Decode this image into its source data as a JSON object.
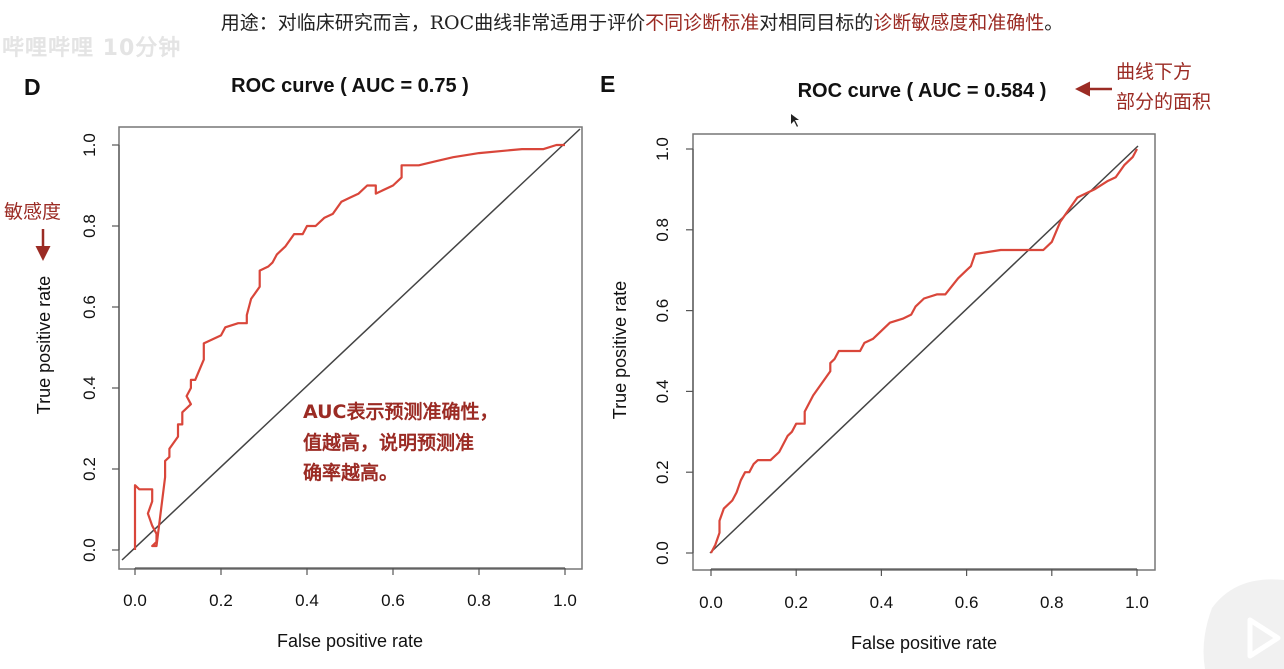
{
  "header": {
    "text_a": "用途：对临床研究而言，ROC曲线非常适用于评价",
    "text_b": "不同诊断标准",
    "text_c": "对相同目标的",
    "text_d": "诊断敏感度和准确性",
    "text_e": "。"
  },
  "watermark": "哔哩哔哩 10分钟",
  "colors": {
    "curve": "#d9463a",
    "annotation": "#9b2b24",
    "diagonal": "#444444"
  },
  "chart_data": [
    {
      "type": "line",
      "panel": "D",
      "title": "ROC curve ( AUC =  0.75 )",
      "xlabel": "False positive rate",
      "ylabel": "True positive rate",
      "xlim": [
        0,
        1
      ],
      "ylim": [
        0,
        1
      ],
      "xticks": [
        "0.0",
        "0.2",
        "0.4",
        "0.6",
        "0.8",
        "1.0"
      ],
      "yticks": [
        "0.0",
        "0.2",
        "0.4",
        "0.6",
        "0.8",
        "1.0"
      ],
      "series": [
        {
          "x": [
            0.0,
            0.0,
            0.01,
            0.04,
            0.04,
            0.03,
            0.04,
            0.05,
            0.05,
            0.04,
            0.05,
            0.07,
            0.07,
            0.07,
            0.08,
            0.08,
            0.1,
            0.1,
            0.11,
            0.11,
            0.13,
            0.12,
            0.13,
            0.13,
            0.14,
            0.16,
            0.16,
            0.18,
            0.2,
            0.21,
            0.24,
            0.26,
            0.26,
            0.27,
            0.29,
            0.29,
            0.31,
            0.32,
            0.33,
            0.35,
            0.37,
            0.39,
            0.4,
            0.42,
            0.44,
            0.46,
            0.48,
            0.5,
            0.52,
            0.54,
            0.56,
            0.56,
            0.6,
            0.62,
            0.62,
            0.66,
            0.7,
            0.74,
            0.8,
            0.9,
            0.95,
            0.98,
            0.99,
            1.0
          ],
          "y": [
            0.0,
            0.16,
            0.15,
            0.15,
            0.12,
            0.09,
            0.06,
            0.04,
            0.02,
            0.01,
            0.01,
            0.18,
            0.19,
            0.22,
            0.23,
            0.25,
            0.28,
            0.31,
            0.31,
            0.34,
            0.36,
            0.38,
            0.4,
            0.42,
            0.42,
            0.47,
            0.51,
            0.52,
            0.53,
            0.55,
            0.56,
            0.56,
            0.58,
            0.62,
            0.65,
            0.69,
            0.7,
            0.71,
            0.73,
            0.75,
            0.78,
            0.78,
            0.8,
            0.8,
            0.82,
            0.83,
            0.86,
            0.87,
            0.88,
            0.9,
            0.9,
            0.88,
            0.9,
            0.92,
            0.95,
            0.95,
            0.96,
            0.97,
            0.98,
            0.99,
            0.99,
            1.0,
            1.0,
            1.0
          ]
        }
      ],
      "reference_line": "diagonal",
      "annotations": [
        "敏感度",
        "AUC表示预测准确性，",
        "值越高，说明预测准",
        "确率越高。"
      ]
    },
    {
      "type": "line",
      "panel": "E",
      "title": "ROC curve ( AUC =  0.584 )",
      "xlabel": "False positive rate",
      "ylabel": "True positive rate",
      "xlim": [
        0,
        1
      ],
      "ylim": [
        0,
        1
      ],
      "xticks": [
        "0.0",
        "0.2",
        "0.4",
        "0.6",
        "0.8",
        "1.0"
      ],
      "yticks": [
        "0.0",
        "0.2",
        "0.4",
        "0.6",
        "0.8",
        "1.0"
      ],
      "series": [
        {
          "x": [
            0.0,
            0.01,
            0.02,
            0.02,
            0.03,
            0.05,
            0.06,
            0.07,
            0.08,
            0.09,
            0.1,
            0.11,
            0.14,
            0.16,
            0.18,
            0.19,
            0.2,
            0.22,
            0.22,
            0.24,
            0.26,
            0.28,
            0.28,
            0.29,
            0.3,
            0.35,
            0.36,
            0.38,
            0.4,
            0.42,
            0.45,
            0.47,
            0.48,
            0.5,
            0.53,
            0.55,
            0.58,
            0.6,
            0.61,
            0.62,
            0.68,
            0.72,
            0.78,
            0.8,
            0.82,
            0.84,
            0.86,
            0.9,
            0.93,
            0.95,
            0.97,
            0.98,
            0.99,
            1.0
          ],
          "y": [
            0.0,
            0.02,
            0.05,
            0.08,
            0.11,
            0.13,
            0.15,
            0.18,
            0.2,
            0.2,
            0.22,
            0.23,
            0.23,
            0.25,
            0.29,
            0.3,
            0.32,
            0.32,
            0.35,
            0.39,
            0.42,
            0.45,
            0.47,
            0.48,
            0.5,
            0.5,
            0.52,
            0.53,
            0.55,
            0.57,
            0.58,
            0.59,
            0.61,
            0.63,
            0.64,
            0.64,
            0.68,
            0.7,
            0.71,
            0.74,
            0.75,
            0.75,
            0.75,
            0.77,
            0.82,
            0.85,
            0.88,
            0.9,
            0.92,
            0.93,
            0.96,
            0.97,
            0.98,
            1.0
          ]
        }
      ],
      "reference_line": "diagonal",
      "annotations": [
        "曲线下方",
        "部分的面积"
      ]
    }
  ]
}
